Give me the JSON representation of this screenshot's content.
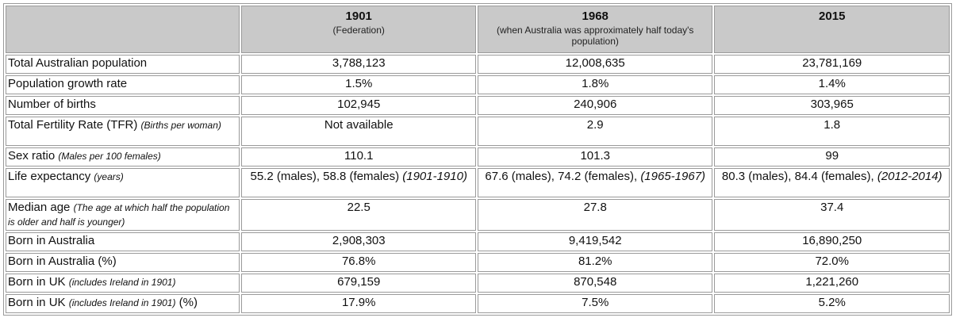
{
  "columns": [
    {
      "year": "1901",
      "note": "(Federation)"
    },
    {
      "year": "1968",
      "note": "(when Australia was approximately half today's population)"
    },
    {
      "year": "2015",
      "note": ""
    }
  ],
  "rows": [
    {
      "label": "Total Australian population",
      "note": "",
      "suffix": "",
      "values": [
        "3,788,123",
        "12,008,635",
        "23,781,169"
      ]
    },
    {
      "label": "Population growth rate",
      "note": "",
      "suffix": "",
      "values": [
        "1.5%",
        "1.8%",
        "1.4%"
      ]
    },
    {
      "label": "Number of births",
      "note": "",
      "suffix": "",
      "values": [
        "102,945",
        "240,906",
        "303,965"
      ]
    },
    {
      "label": "Total Fertility Rate (TFR)",
      "note": "(Births per woman)",
      "suffix": "",
      "values": [
        "Not available",
        "2.9",
        "1.8"
      ]
    },
    {
      "label": "Sex ratio",
      "note": "(Males per 100 females)",
      "suffix": "",
      "values": [
        "110.1",
        "101.3",
        "99"
      ]
    },
    {
      "label": "Life expectancy",
      "note": "(years)",
      "suffix": "",
      "values": [
        "55.2 (males), 58.8 (females)",
        "67.6 (males), 74.2 (females),",
        "80.3 (males), 84.4 (females),"
      ],
      "periods": [
        "(1901-1910)",
        "(1965-1967)",
        "(2012-2014)"
      ]
    },
    {
      "label": "Median age",
      "note": "(The age at which half the population is older and half is younger)",
      "suffix": "",
      "values": [
        "22.5",
        "27.8",
        "37.4"
      ]
    },
    {
      "label": "Born in Australia",
      "note": "",
      "suffix": "",
      "values": [
        "2,908,303",
        "9,419,542",
        "16,890,250"
      ]
    },
    {
      "label": "Born in Australia (%)",
      "note": "",
      "suffix": "",
      "values": [
        "76.8%",
        "81.2%",
        "72.0%"
      ]
    },
    {
      "label": "Born in UK",
      "note": "(includes Ireland in 1901)",
      "suffix": "",
      "values": [
        "679,159",
        "870,548",
        "1,221,260"
      ]
    },
    {
      "label": "Born in UK",
      "note": "(includes Ireland in 1901)",
      "suffix": "(%)",
      "values": [
        "17.9%",
        "7.5%",
        "5.2%"
      ]
    }
  ]
}
